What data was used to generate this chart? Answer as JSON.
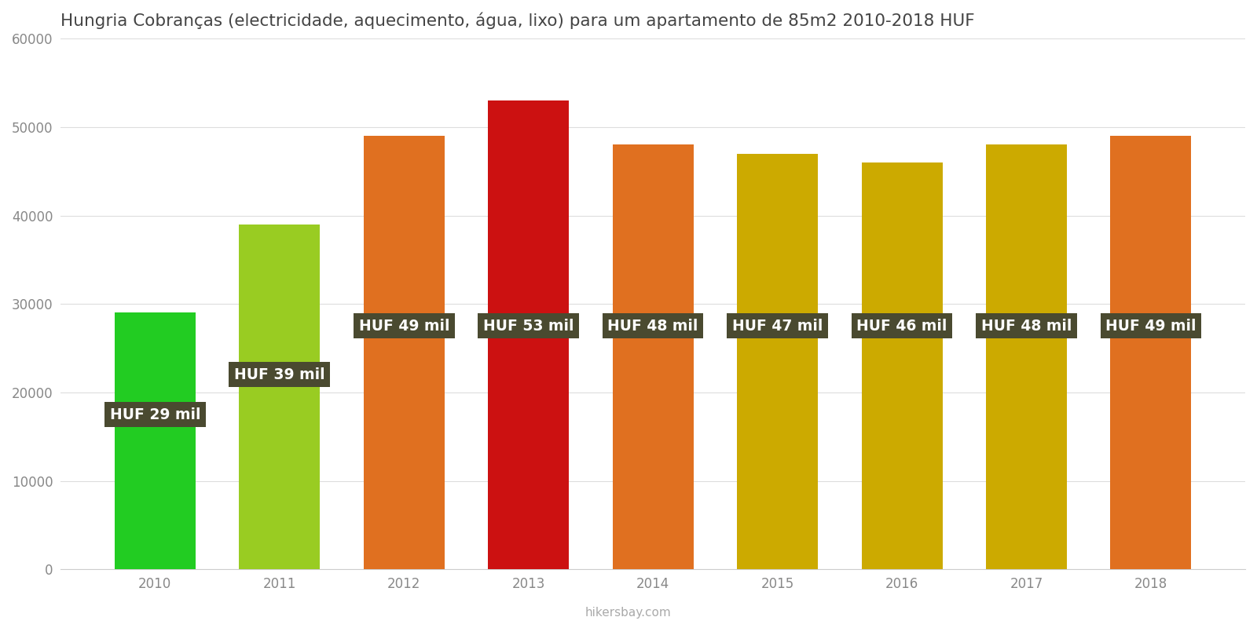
{
  "title": "Hungria Cobranças (electricidade, aquecimento, água, lixo) para um apartamento de 85m2 2010-2018 HUF",
  "years": [
    2010,
    2011,
    2012,
    2013,
    2014,
    2015,
    2016,
    2017,
    2018
  ],
  "values": [
    29000,
    39000,
    49000,
    53000,
    48000,
    47000,
    46000,
    48000,
    49000
  ],
  "labels": [
    "HUF 29 mil",
    "HUF 39 mil",
    "HUF 49 mil",
    "HUF 53 mil",
    "HUF 48 mil",
    "HUF 47 mil",
    "HUF 46 mil",
    "HUF 48 mil",
    "HUF 49 mil"
  ],
  "label_y_positions": [
    17500,
    22000,
    27500,
    27500,
    27500,
    27500,
    27500,
    27500,
    27500
  ],
  "bar_colors": [
    "#22cc22",
    "#99cc22",
    "#e07020",
    "#cc1111",
    "#e07020",
    "#ccaa00",
    "#ccaa00",
    "#ccaa00",
    "#e07020"
  ],
  "ylim": [
    0,
    60000
  ],
  "yticks": [
    0,
    10000,
    20000,
    30000,
    40000,
    50000,
    60000
  ],
  "label_bg_color": "#4a4a30",
  "label_text_color": "#ffffff",
  "label_fontsize": 13.5,
  "title_fontsize": 15.5,
  "watermark": "hikersbay.com",
  "background_color": "#ffffff",
  "grid_color": "#dddddd",
  "bar_width": 0.65
}
